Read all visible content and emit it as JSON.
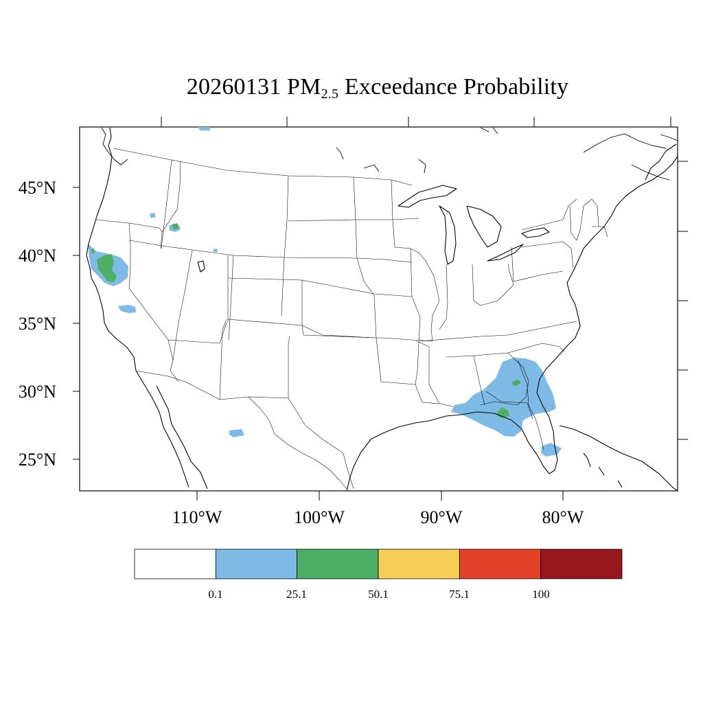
{
  "title": {
    "prefix": "20260131 PM",
    "subscript": "2.5",
    "suffix": " Exceedance Probability"
  },
  "map": {
    "region": "Contiguous United States",
    "lat_labels": [
      "45°N",
      "40°N",
      "35°N",
      "30°N",
      "25°N"
    ],
    "lon_labels": [
      "110°W",
      "100°W",
      "90°W",
      "80°W"
    ]
  },
  "colorbar": {
    "bins": [
      {
        "color": "#ffffff"
      },
      {
        "color": "#7dbbe6"
      },
      {
        "color": "#4caf63"
      },
      {
        "color": "#f8cf55"
      },
      {
        "color": "#e34229"
      },
      {
        "color": "#96171c"
      }
    ],
    "tick_labels": [
      "0.1",
      "25.1",
      "50.1",
      "75.1",
      "100"
    ]
  },
  "probability_areas": [
    {
      "region": "Northern California",
      "level": "0.1-25.1",
      "color": "#7dbbe6"
    },
    {
      "region": "Northern California core",
      "level": "25.1-50.1",
      "color": "#4caf63"
    },
    {
      "region": "Southern Idaho",
      "level": "25.1-50.1",
      "color": "#4caf63"
    },
    {
      "region": "Southeastern US (Georgia / North Florida)",
      "level": "0.1-25.1",
      "color": "#7dbbe6"
    },
    {
      "region": "Georgia / Florida Panhandle spots",
      "level": "25.1-50.1",
      "color": "#4caf63"
    },
    {
      "region": "South Florida",
      "level": "0.1-25.1",
      "color": "#7dbbe6"
    },
    {
      "region": "Northern Mexico",
      "level": "0.1-25.1",
      "color": "#7dbbe6"
    }
  ]
}
